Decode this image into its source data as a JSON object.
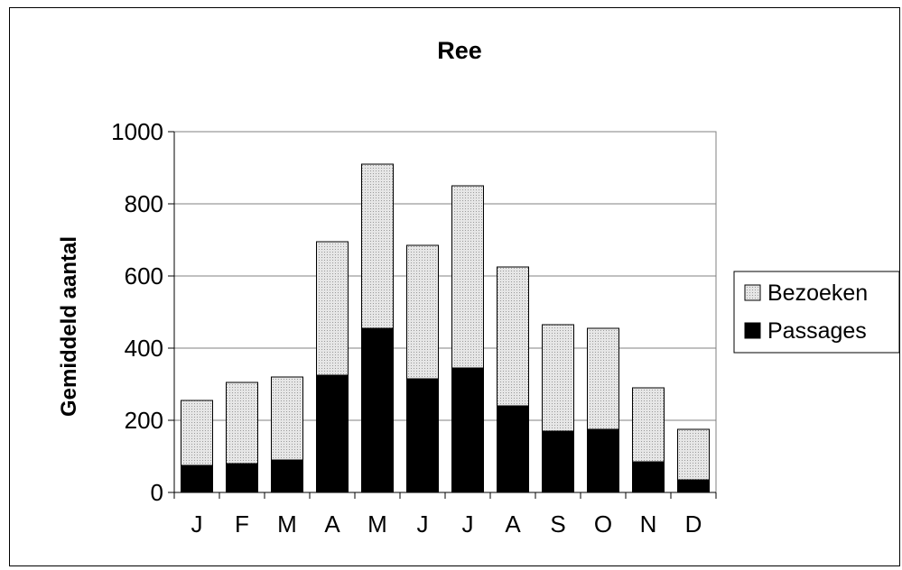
{
  "chart_data": {
    "type": "bar",
    "stacked": true,
    "title": "Ree",
    "xlabel": "",
    "ylabel": "Gemiddeld aantal",
    "ylim": [
      0,
      1000
    ],
    "yticks": [
      0,
      200,
      400,
      600,
      800,
      1000
    ],
    "grid": true,
    "legend_position": "right",
    "categories": [
      "J",
      "F",
      "M",
      "A",
      "M",
      "J",
      "J",
      "A",
      "S",
      "O",
      "N",
      "D"
    ],
    "series": [
      {
        "name": "Passages",
        "color": "#000000",
        "values": [
          75,
          80,
          90,
          325,
          455,
          315,
          345,
          240,
          170,
          175,
          85,
          35
        ]
      },
      {
        "name": "Bezoeken",
        "color": "#d9d9d9",
        "values": [
          180,
          225,
          230,
          370,
          455,
          370,
          505,
          385,
          295,
          280,
          205,
          140
        ]
      }
    ]
  }
}
